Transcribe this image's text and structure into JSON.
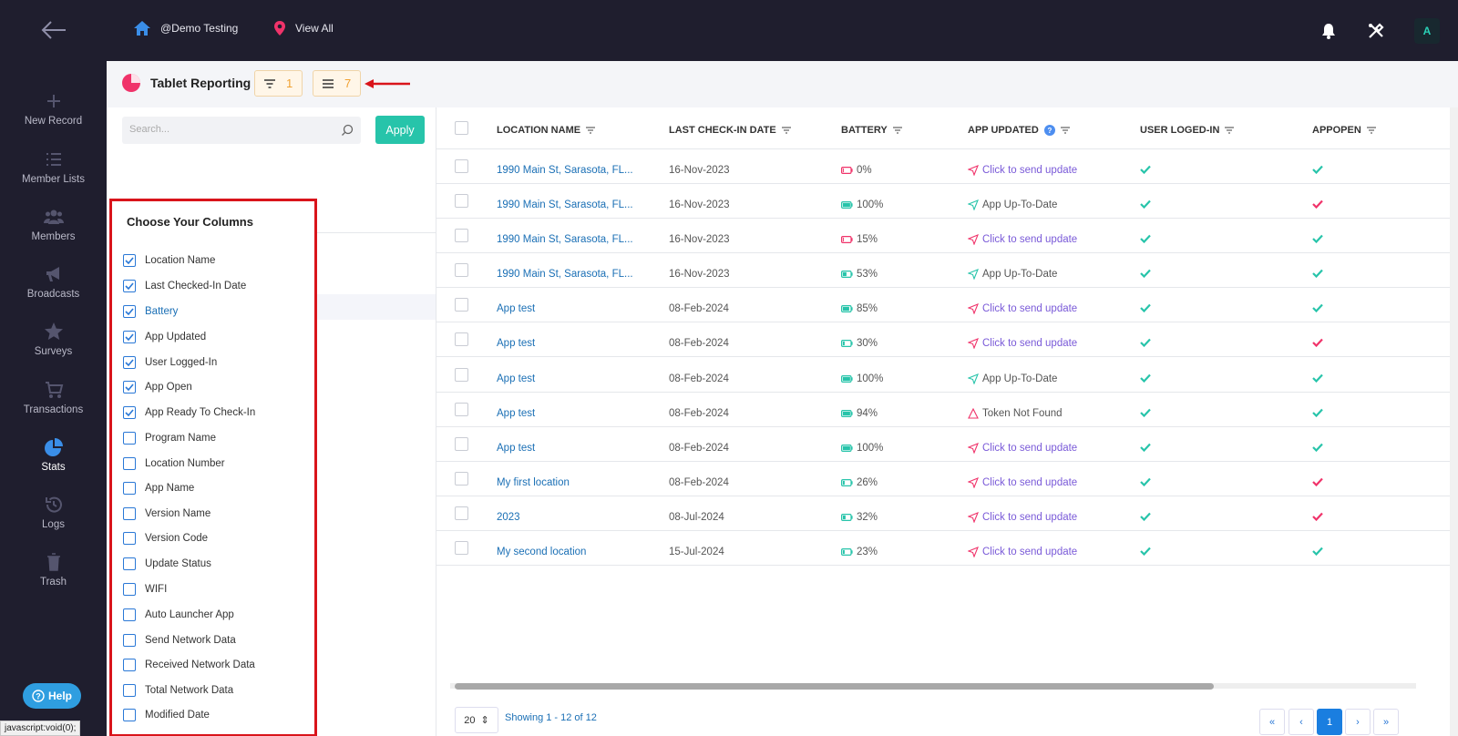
{
  "topbar": {
    "crumb_org": "@Demo Testing",
    "crumb_view": "View All",
    "avatar_initial": "A"
  },
  "sidebar": {
    "items": [
      {
        "label": "New Record",
        "icon": "plus-icon"
      },
      {
        "label": "Member Lists",
        "icon": "list-icon"
      },
      {
        "label": "Members",
        "icon": "users-icon"
      },
      {
        "label": "Broadcasts",
        "icon": "megaphone-icon"
      },
      {
        "label": "Surveys",
        "icon": "star-icon"
      },
      {
        "label": "Transactions",
        "icon": "cart-icon"
      },
      {
        "label": "Stats",
        "icon": "pie-chart-icon",
        "active": true
      },
      {
        "label": "Logs",
        "icon": "history-icon"
      },
      {
        "label": "Trash",
        "icon": "trash-icon"
      }
    ],
    "help_label": "Help"
  },
  "status_bar": "javascript:void(0);",
  "header": {
    "title": "Tablet Reporting",
    "filter_count": "1",
    "columns_count": "7"
  },
  "panel": {
    "search_placeholder": "Search...",
    "apply_label": "Apply",
    "chooser_title": "Choose Your Columns",
    "columns": [
      {
        "label": "Location Name",
        "checked": true
      },
      {
        "label": "Last Checked-In Date",
        "checked": true
      },
      {
        "label": "Battery",
        "checked": true,
        "highlight": true
      },
      {
        "label": "App Updated",
        "checked": true
      },
      {
        "label": "User Logged-In",
        "checked": true
      },
      {
        "label": "App Open",
        "checked": true
      },
      {
        "label": "App Ready To Check-In",
        "checked": true
      },
      {
        "label": "Program Name",
        "checked": false
      },
      {
        "label": "Location Number",
        "checked": false
      },
      {
        "label": "App Name",
        "checked": false
      },
      {
        "label": "Version Name",
        "checked": false
      },
      {
        "label": "Version Code",
        "checked": false
      },
      {
        "label": "Update Status",
        "checked": false
      },
      {
        "label": "WIFI",
        "checked": false
      },
      {
        "label": "Auto Launcher App",
        "checked": false
      },
      {
        "label": "Send Network Data",
        "checked": false
      },
      {
        "label": "Received Network Data",
        "checked": false
      },
      {
        "label": "Total Network Data",
        "checked": false
      },
      {
        "label": "Modified Date",
        "checked": false
      }
    ]
  },
  "table": {
    "headers": [
      "LOCATION NAME",
      "LAST CHECK-IN DATE",
      "BATTERY",
      "APP UPDATED",
      "USER LOGED-IN",
      "APPOPEN"
    ],
    "rows": [
      {
        "location": "1990 Main St, Sarasota, FL...",
        "date": "16-Nov-2023",
        "battery": "0%",
        "level": 0,
        "update": "Click to send update",
        "update_type": "send",
        "user": "ok",
        "open": "ok"
      },
      {
        "location": "1990 Main St, Sarasota, FL...",
        "date": "16-Nov-2023",
        "battery": "100%",
        "level": 100,
        "update": "App Up-To-Date",
        "update_type": "ok",
        "user": "ok",
        "open": "warn"
      },
      {
        "location": "1990 Main St, Sarasota, FL...",
        "date": "16-Nov-2023",
        "battery": "15%",
        "level": 15,
        "update": "Click to send update",
        "update_type": "send",
        "user": "ok",
        "open": "ok"
      },
      {
        "location": "1990 Main St, Sarasota, FL...",
        "date": "16-Nov-2023",
        "battery": "53%",
        "level": 53,
        "update": "App Up-To-Date",
        "update_type": "ok",
        "user": "ok",
        "open": "ok"
      },
      {
        "location": "App test",
        "date": "08-Feb-2024",
        "battery": "85%",
        "level": 85,
        "update": "Click to send update",
        "update_type": "send",
        "user": "ok",
        "open": "ok"
      },
      {
        "location": "App test",
        "date": "08-Feb-2024",
        "battery": "30%",
        "level": 30,
        "update": "Click to send update",
        "update_type": "send",
        "user": "ok",
        "open": "warn"
      },
      {
        "location": "App test",
        "date": "08-Feb-2024",
        "battery": "100%",
        "level": 100,
        "update": "App Up-To-Date",
        "update_type": "ok",
        "user": "ok",
        "open": "ok"
      },
      {
        "location": "App test",
        "date": "08-Feb-2024",
        "battery": "94%",
        "level": 94,
        "update": "Token Not Found",
        "update_type": "error",
        "user": "ok",
        "open": "ok"
      },
      {
        "location": "App test",
        "date": "08-Feb-2024",
        "battery": "100%",
        "level": 100,
        "update": "Click to send update",
        "update_type": "send",
        "user": "ok",
        "open": "ok"
      },
      {
        "location": "My first location",
        "date": "08-Feb-2024",
        "battery": "26%",
        "level": 26,
        "update": "Click to send update",
        "update_type": "send",
        "user": "ok",
        "open": "warn"
      },
      {
        "location": "2023",
        "date": "08-Jul-2024",
        "battery": "32%",
        "level": 32,
        "update": "Click to send update",
        "update_type": "send",
        "user": "ok",
        "open": "warn"
      },
      {
        "location": "My second location",
        "date": "15-Jul-2024",
        "battery": "23%",
        "level": 23,
        "update": "Click to send update",
        "update_type": "send",
        "user": "ok",
        "open": "ok"
      }
    ]
  },
  "pagination": {
    "page_size": "20",
    "showing": "Showing 1 - 12 of 12",
    "pages": [
      "«",
      "‹",
      "1",
      "›",
      "»"
    ],
    "current": "1"
  },
  "colors": {
    "accent": "#27c4aa",
    "link": "#1a6fb5",
    "danger": "#f0336a",
    "highlight_box": "#d9141b"
  }
}
